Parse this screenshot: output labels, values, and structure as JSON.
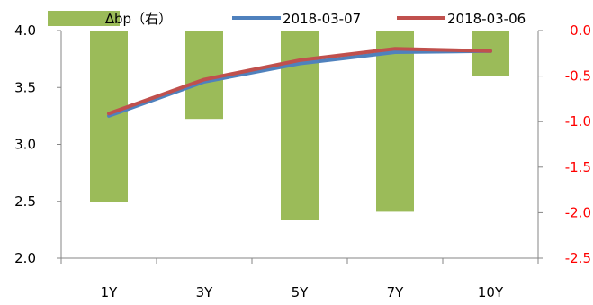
{
  "chart_data": {
    "type": "bar+line",
    "categories": [
      "1Y",
      "3Y",
      "5Y",
      "7Y",
      "10Y"
    ],
    "bar_series": {
      "name": "∆bp（右）",
      "axis": "right",
      "values": [
        -1.88,
        -0.97,
        -2.08,
        -1.99,
        -0.5
      ],
      "color": "#9bbb59"
    },
    "line_series": [
      {
        "name": "2018-03-07",
        "axis": "left",
        "values": [
          3.25,
          3.55,
          3.71,
          3.81,
          3.82
        ],
        "color": "#4f81bd"
      },
      {
        "name": "2018-03-06",
        "axis": "left",
        "values": [
          3.27,
          3.57,
          3.74,
          3.84,
          3.82
        ],
        "color": "#c0504d"
      }
    ],
    "left_axis": {
      "min": 2.0,
      "max": 4.0,
      "ticks": [
        "2.0",
        "2.5",
        "3.0",
        "3.5",
        "4.0"
      ],
      "color": "#000000"
    },
    "right_axis": {
      "min": -2.5,
      "max": 0.0,
      "ticks": [
        "-2.5",
        "-2.0",
        "-1.5",
        "-1.0",
        "-0.5",
        "0.0"
      ],
      "color": "#ff0000"
    },
    "grid": false,
    "legend_position": "top"
  }
}
